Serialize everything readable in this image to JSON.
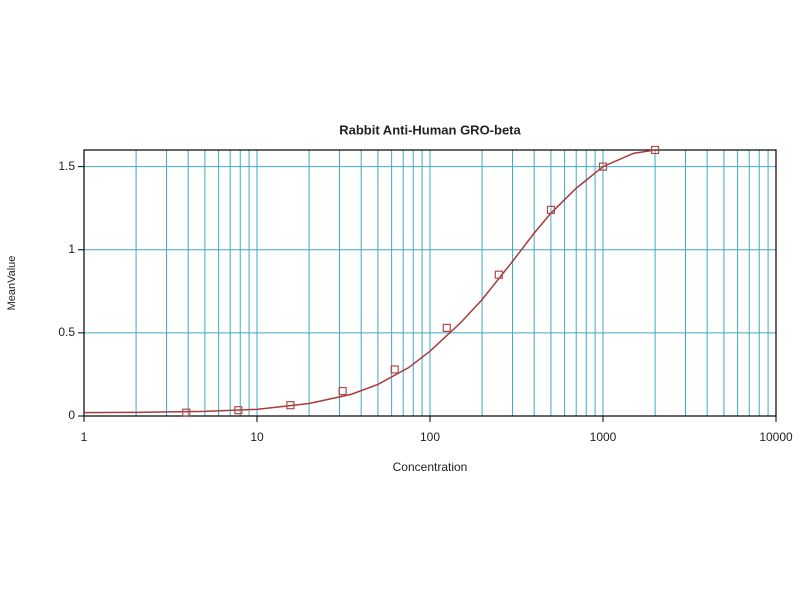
{
  "chart_data": {
    "type": "scatter-fit",
    "title": "Rabbit Anti-Human GRO-beta",
    "xlabel": "Concentration",
    "ylabel": "MeanValue",
    "xscale": "log",
    "xlim": [
      1,
      10000
    ],
    "xticks": [
      1,
      10,
      100,
      1000,
      10000
    ],
    "ylim": [
      0,
      1.6
    ],
    "yticks": [
      0,
      0.5,
      1,
      1.5
    ],
    "grid": true,
    "grid_color": "#3fa9c4",
    "series": [
      {
        "kind": "points",
        "color": "#b04a4a",
        "x": [
          3.9,
          7.8,
          15.6,
          31.25,
          62.5,
          125,
          250,
          500,
          1000,
          2000
        ],
        "values": [
          0.02,
          0.035,
          0.065,
          0.15,
          0.28,
          0.53,
          0.85,
          1.24,
          1.5,
          1.6
        ]
      },
      {
        "kind": "line",
        "color": "#a83a3a",
        "x": [
          1,
          2,
          5,
          10,
          20,
          35,
          50,
          75,
          100,
          150,
          200,
          300,
          400,
          500,
          700,
          1000,
          1500,
          2000
        ],
        "values": [
          0.02,
          0.022,
          0.028,
          0.04,
          0.075,
          0.13,
          0.19,
          0.29,
          0.39,
          0.56,
          0.7,
          0.93,
          1.1,
          1.22,
          1.37,
          1.5,
          1.58,
          1.6
        ]
      }
    ]
  }
}
